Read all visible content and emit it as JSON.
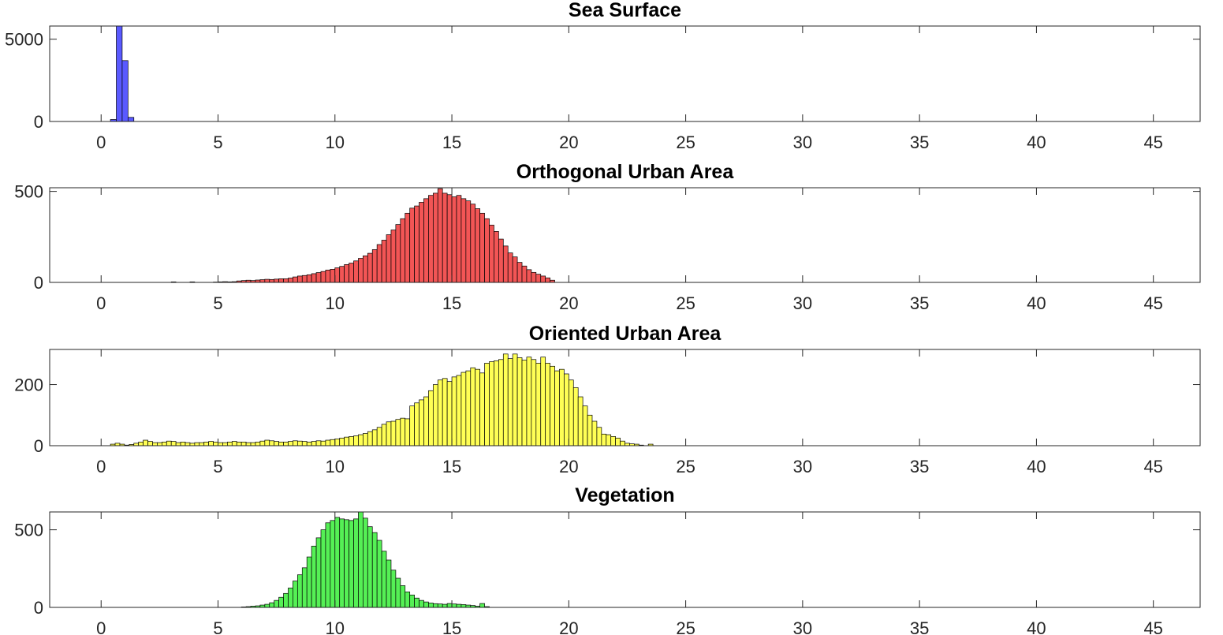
{
  "chart_data": [
    {
      "type": "bar",
      "title": "Sea Surface",
      "xlabel": "",
      "ylabel": "",
      "xlim": [
        -2.2,
        47
      ],
      "ylim": [
        0,
        5800
      ],
      "xticks": [
        0,
        5,
        10,
        15,
        20,
        25,
        30,
        35,
        40,
        45
      ],
      "yticks": [
        0,
        5000
      ],
      "bin_start": 0.4,
      "bin_width": 0.25,
      "values": [
        120,
        5800,
        3700,
        250
      ],
      "color": "#5a5aff"
    },
    {
      "type": "bar",
      "title": "Orthogonal Urban Area",
      "xlabel": "",
      "ylabel": "",
      "xlim": [
        -2.2,
        47
      ],
      "ylim": [
        0,
        520
      ],
      "xticks": [
        0,
        5,
        10,
        15,
        20,
        25,
        30,
        35,
        40,
        45
      ],
      "yticks": [
        0,
        500
      ],
      "bin_start": 3.0,
      "bin_width": 0.2,
      "values": [
        3,
        0,
        0,
        0,
        3,
        0,
        0,
        0,
        0,
        2,
        3,
        4,
        3,
        4,
        8,
        10,
        12,
        10,
        13,
        15,
        17,
        16,
        18,
        20,
        20,
        24,
        30,
        35,
        38,
        42,
        48,
        54,
        60,
        68,
        72,
        80,
        88,
        98,
        106,
        118,
        132,
        146,
        160,
        180,
        208,
        232,
        262,
        288,
        318,
        350,
        380,
        408,
        420,
        440,
        460,
        478,
        490,
        515,
        490,
        482,
        470,
        478,
        460,
        448,
        430,
        405,
        380,
        350,
        315,
        280,
        238,
        200,
        162,
        140,
        110,
        90,
        70,
        55,
        45,
        35,
        25,
        12
      ]
    },
    {
      "type": "bar",
      "title": "Oriented Urban Area",
      "xlabel": "",
      "ylabel": "",
      "xlim": [
        -2.2,
        47
      ],
      "ylim": [
        0,
        315
      ],
      "xticks": [
        0,
        5,
        10,
        15,
        20,
        25,
        30,
        35,
        40,
        45
      ],
      "yticks": [
        0,
        200
      ],
      "bin_start": 0.4,
      "bin_width": 0.2,
      "values": [
        5,
        8,
        5,
        2,
        4,
        8,
        12,
        18,
        14,
        10,
        10,
        12,
        15,
        14,
        10,
        12,
        10,
        8,
        10,
        10,
        12,
        14,
        12,
        10,
        10,
        12,
        14,
        12,
        12,
        10,
        10,
        12,
        15,
        18,
        16,
        14,
        12,
        12,
        14,
        16,
        15,
        14,
        12,
        14,
        16,
        15,
        18,
        20,
        22,
        25,
        28,
        30,
        32,
        36,
        40,
        46,
        52,
        60,
        70,
        78,
        80,
        86,
        90,
        88,
        130,
        140,
        150,
        160,
        180,
        200,
        215,
        220,
        210,
        225,
        230,
        240,
        245,
        255,
        250,
        238,
        270,
        275,
        278,
        282,
        300,
        285,
        300,
        288,
        280,
        290,
        282,
        270,
        290,
        270,
        260,
        245,
        250,
        235,
        215,
        190,
        160,
        130,
        100,
        80,
        60,
        38,
        36,
        30,
        25,
        15,
        8,
        6,
        5,
        2,
        0,
        5
      ]
    },
    {
      "type": "bar",
      "title": "Vegetation",
      "xlabel": "",
      "ylabel": "",
      "xlim": [
        -2.2,
        47
      ],
      "ylim": [
        0,
        615
      ],
      "xticks": [
        0,
        5,
        10,
        15,
        20,
        25,
        30,
        35,
        40,
        45
      ],
      "yticks": [
        0,
        500
      ],
      "bin_start": 6.0,
      "bin_width": 0.2,
      "values": [
        3,
        5,
        8,
        10,
        15,
        20,
        30,
        45,
        65,
        90,
        125,
        170,
        210,
        255,
        325,
        395,
        448,
        500,
        545,
        560,
        580,
        570,
        565,
        560,
        570,
        615,
        575,
        520,
        482,
        432,
        362,
        305,
        240,
        188,
        140,
        100,
        80,
        60,
        45,
        35,
        28,
        24,
        22,
        20,
        25,
        22,
        20,
        18,
        15,
        12,
        8,
        25,
        5
      ]
    }
  ]
}
